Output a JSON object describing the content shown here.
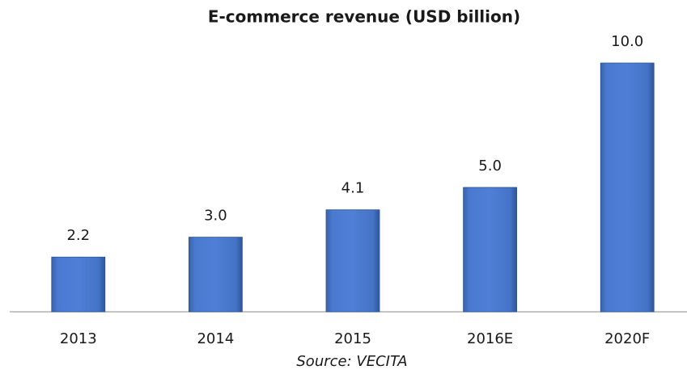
{
  "chart_data": {
    "type": "bar",
    "title": "E-commerce revenue (USD billion)",
    "categories": [
      "2013",
      "2014",
      "2015",
      "2016E",
      "2020F"
    ],
    "values": [
      2.2,
      3.0,
      4.1,
      5.0,
      10.0
    ],
    "value_labels": [
      "2.2",
      "3.0",
      "4.1",
      "5.0",
      "10.0"
    ],
    "color": "#4472c4",
    "ylim": [
      0,
      10
    ],
    "annotation": "Source: VECITA"
  }
}
